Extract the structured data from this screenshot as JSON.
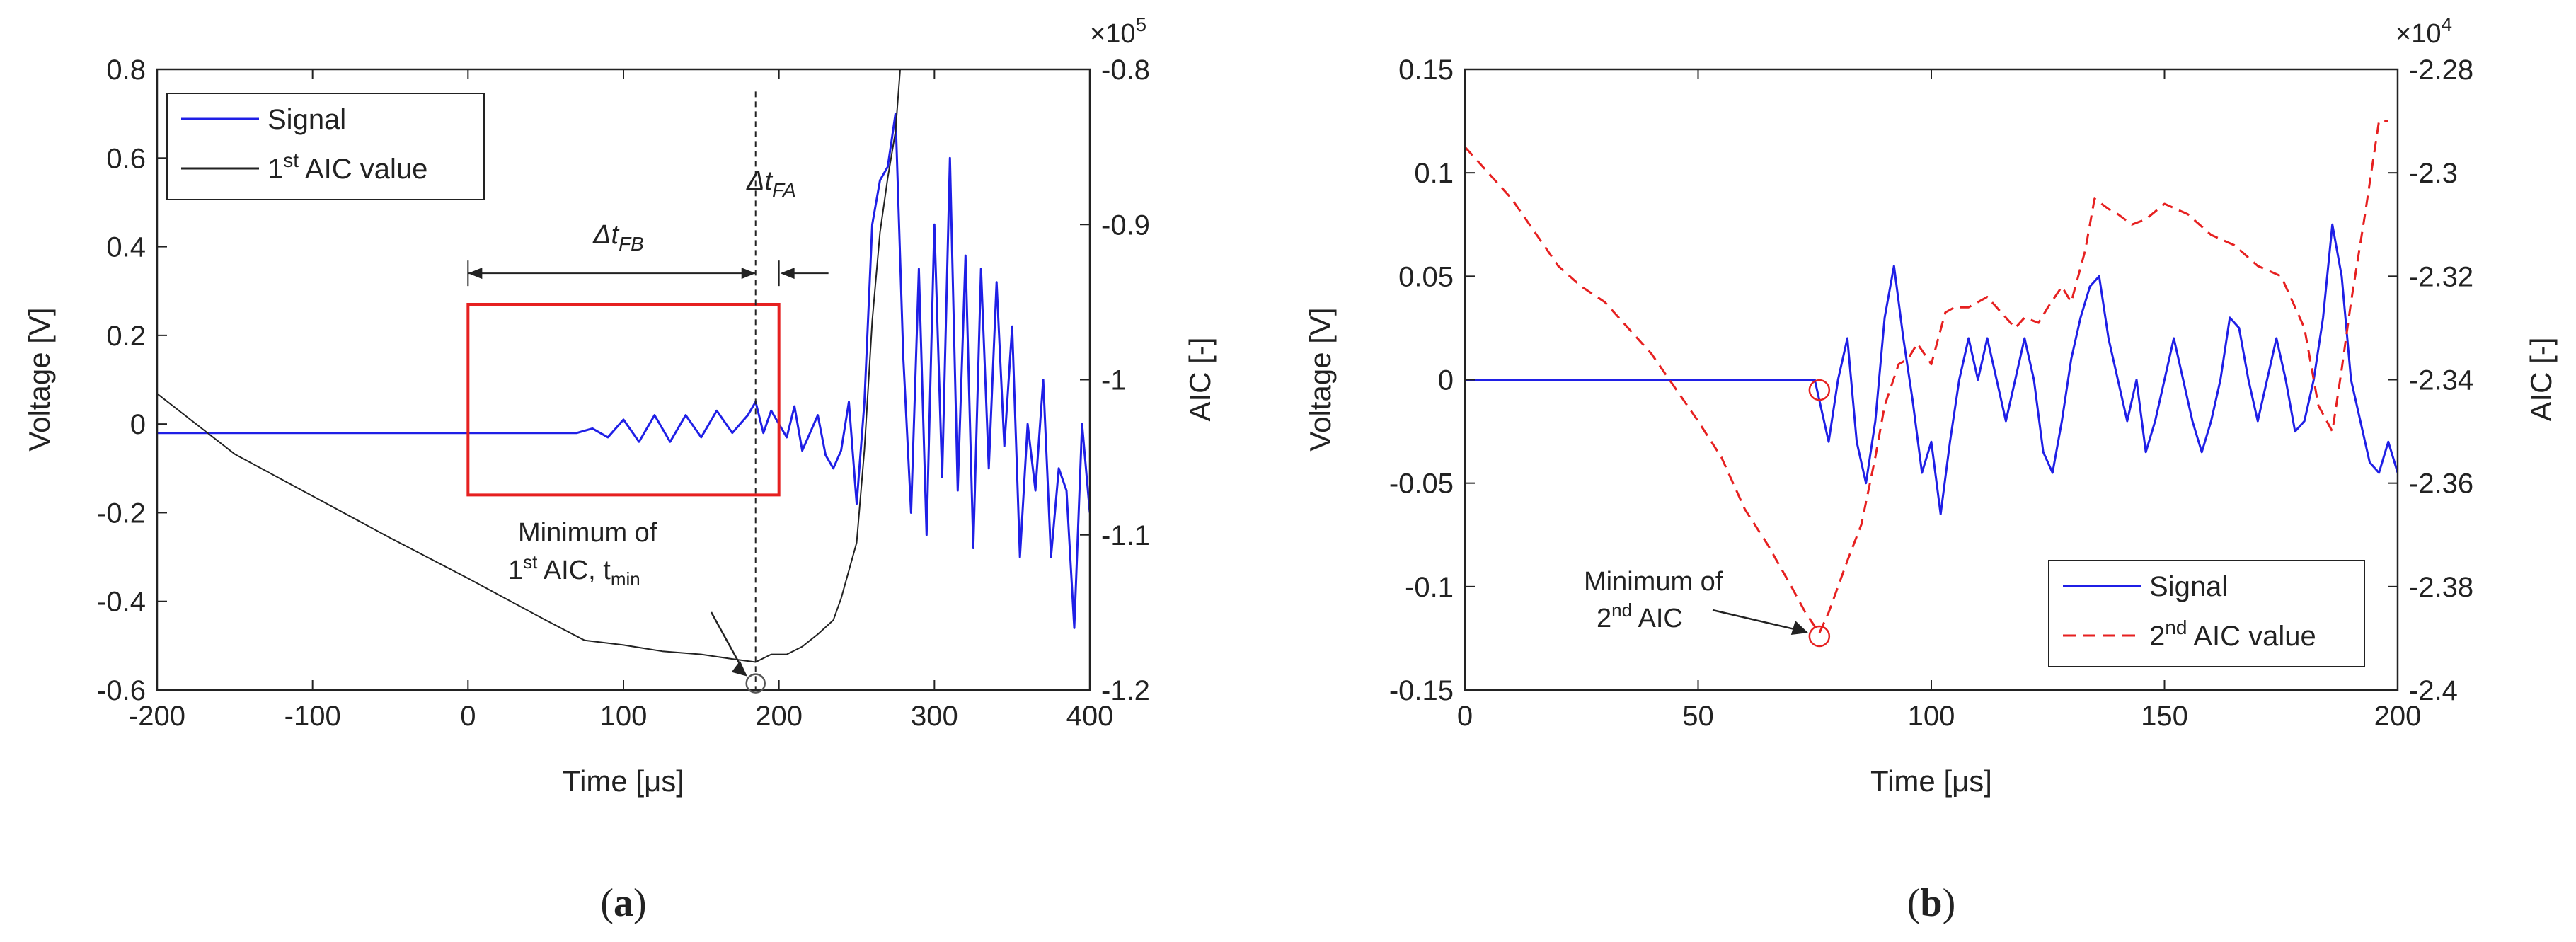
{
  "figure": {
    "caption_a": "(a)",
    "caption_b": "(b)",
    "caption_a_letter": "a",
    "caption_b_letter": "b"
  },
  "chart_data": [
    {
      "id": "a",
      "type": "line",
      "x_label": "Time [μs]",
      "y_label_left": "Voltage [V]",
      "y_label_right": "AIC [-]",
      "right_axis_multiplier": "×10",
      "right_axis_exponent": "5",
      "xlim": [
        -200,
        400
      ],
      "ylim_left": [
        -0.6,
        0.8
      ],
      "ylim_right": [
        -1.2,
        -0.8
      ],
      "x_ticks": [
        -200,
        -100,
        0,
        100,
        200,
        300,
        400
      ],
      "x_tick_labels": [
        "-200",
        "-100",
        "0",
        "100",
        "200",
        "300",
        "400"
      ],
      "y_ticks_left": [
        -0.6,
        -0.4,
        -0.2,
        0,
        0.2,
        0.4,
        0.6,
        0.8
      ],
      "y_tick_labels_left": [
        "-0.6",
        "-0.4",
        "-0.2",
        "0",
        "0.2",
        "0.4",
        "0.6",
        "0.8"
      ],
      "y_ticks_right": [
        -1.2,
        -1.1,
        -1.0,
        -0.9,
        -0.8
      ],
      "y_tick_labels_right": [
        "-1.2",
        "-1.1",
        "-1",
        "-0.9",
        "-0.8"
      ],
      "legend": {
        "position": "top-left",
        "entries": [
          {
            "label": "Signal",
            "color": "#1f1fe6",
            "style": "solid"
          },
          {
            "label": "1st AIC value",
            "base": "1",
            "sup": "st",
            "rest": " AIC value",
            "color": "#222222",
            "style": "solid"
          }
        ]
      },
      "series": [
        {
          "name": "Signal",
          "color": "#1f1fe6",
          "axis": "left",
          "x": [
            -200,
            -150,
            -100,
            -50,
            0,
            50,
            70,
            80,
            90,
            100,
            110,
            120,
            130,
            140,
            150,
            160,
            170,
            180,
            185,
            190,
            195,
            200,
            205,
            210,
            215,
            220,
            225,
            230,
            235,
            240,
            245,
            250,
            255,
            260,
            265,
            270,
            275,
            280,
            285,
            290,
            295,
            300,
            305,
            310,
            315,
            320,
            325,
            330,
            335,
            340,
            345,
            350,
            355,
            360,
            365,
            370,
            375,
            380,
            385,
            390,
            395,
            400
          ],
          "y": [
            -0.02,
            -0.02,
            -0.02,
            -0.02,
            -0.02,
            -0.02,
            -0.02,
            -0.01,
            -0.03,
            0.01,
            -0.04,
            0.02,
            -0.04,
            0.02,
            -0.03,
            0.03,
            -0.02,
            0.02,
            0.05,
            -0.02,
            0.03,
            0.0,
            -0.03,
            0.04,
            -0.06,
            -0.02,
            0.02,
            -0.07,
            -0.1,
            -0.06,
            0.05,
            -0.18,
            0.05,
            0.45,
            0.55,
            0.58,
            0.7,
            0.15,
            -0.2,
            0.35,
            -0.25,
            0.45,
            -0.12,
            0.6,
            -0.15,
            0.38,
            -0.28,
            0.35,
            -0.1,
            0.32,
            -0.05,
            0.22,
            -0.3,
            0.0,
            -0.15,
            0.1,
            -0.3,
            -0.1,
            -0.15,
            -0.46,
            0.0,
            -0.2
          ]
        },
        {
          "name": "1st AIC value",
          "color": "#222222",
          "axis": "right",
          "x": [
            -200,
            -150,
            -100,
            -50,
            0,
            50,
            75,
            100,
            125,
            150,
            170,
            185,
            195,
            205,
            215,
            225,
            235,
            240,
            250,
            255,
            260,
            265,
            270,
            275,
            278
          ],
          "y": [
            -1.009,
            -1.048,
            -1.075,
            -1.102,
            -1.128,
            -1.155,
            -1.168,
            -1.171,
            -1.175,
            -1.177,
            -1.18,
            -1.182,
            -1.177,
            -1.177,
            -1.172,
            -1.164,
            -1.155,
            -1.141,
            -1.105,
            -1.045,
            -0.962,
            -0.905,
            -0.87,
            -0.84,
            -0.8
          ]
        }
      ],
      "annotations": {
        "box": {
          "x_range": [
            0,
            200
          ],
          "y_range": [
            -0.16,
            0.27
          ],
          "color": "#e62020"
        },
        "dt_fb": {
          "base": "Δt",
          "sub": "FB",
          "x_range": [
            0,
            185
          ],
          "y": 0.34
        },
        "dt_fa": {
          "base": "Δt",
          "sub": "FA",
          "x_range": [
            185,
            200
          ],
          "y": 0.34
        },
        "dashed_line_x": 185,
        "min_circle": {
          "x": 185,
          "y": -0.585
        },
        "min_text_line1": "Minimum of",
        "min_text_line2_base": "1",
        "min_text_line2_sup": "st",
        "min_text_line2_mid": " AIC, t",
        "min_text_line2_sub": "min"
      }
    },
    {
      "id": "b",
      "type": "line",
      "x_label": "Time [μs]",
      "y_label_left": "Voltage [V]",
      "y_label_right": "AIC [-]",
      "right_axis_multiplier": "×10",
      "right_axis_exponent": "4",
      "xlim": [
        0,
        200
      ],
      "ylim_left": [
        -0.15,
        0.15
      ],
      "ylim_right": [
        -2.4,
        -2.28
      ],
      "x_ticks": [
        0,
        50,
        100,
        150,
        200
      ],
      "x_tick_labels": [
        "0",
        "50",
        "100",
        "150",
        "200"
      ],
      "y_ticks_left": [
        -0.15,
        -0.1,
        -0.05,
        0,
        0.05,
        0.1,
        0.15
      ],
      "y_tick_labels_left": [
        "-0.15",
        "-0.1",
        "-0.05",
        "0",
        "0.05",
        "0.1",
        "0.15"
      ],
      "y_ticks_right": [
        -2.4,
        -2.38,
        -2.36,
        -2.34,
        -2.32,
        -2.3,
        -2.28
      ],
      "y_tick_labels_right": [
        "-2.4",
        "-2.38",
        "-2.36",
        "-2.34",
        "-2.32",
        "-2.3",
        "-2.28"
      ],
      "legend": {
        "position": "bottom-right",
        "entries": [
          {
            "label": "Signal",
            "color": "#1f1fe6",
            "style": "solid"
          },
          {
            "label": "2nd AIC value",
            "base": "2",
            "sup": "nd",
            "rest": " AIC value",
            "color": "#e62020",
            "style": "dashed"
          }
        ]
      },
      "series": [
        {
          "name": "Signal",
          "color": "#1f1fe6",
          "axis": "left",
          "x": [
            0,
            10,
            20,
            30,
            40,
            50,
            60,
            70,
            75,
            78,
            80,
            82,
            84,
            86,
            88,
            90,
            92,
            94,
            96,
            98,
            100,
            102,
            104,
            106,
            108,
            110,
            112,
            114,
            116,
            118,
            120,
            122,
            124,
            126,
            128,
            130,
            132,
            134,
            136,
            138,
            140,
            142,
            144,
            146,
            148,
            150,
            152,
            154,
            156,
            158,
            160,
            162,
            164,
            166,
            168,
            170,
            172,
            174,
            176,
            178,
            180,
            182,
            184,
            186,
            188,
            190,
            192,
            194,
            196,
            198,
            200
          ],
          "y": [
            0.0,
            0.0,
            0.0,
            0.0,
            0.0,
            0.0,
            0.0,
            0.0,
            0.0,
            -0.03,
            0.0,
            0.02,
            -0.03,
            -0.05,
            -0.02,
            0.03,
            0.055,
            0.02,
            -0.01,
            -0.045,
            -0.03,
            -0.065,
            -0.03,
            0.0,
            0.02,
            0.0,
            0.02,
            0.0,
            -0.02,
            0.0,
            0.02,
            0.0,
            -0.035,
            -0.045,
            -0.02,
            0.01,
            0.03,
            0.045,
            0.05,
            0.02,
            0.0,
            -0.02,
            0.0,
            -0.035,
            -0.02,
            0.0,
            0.02,
            0.0,
            -0.02,
            -0.035,
            -0.02,
            0.0,
            0.03,
            0.025,
            0.0,
            -0.02,
            0.0,
            0.02,
            0.0,
            -0.025,
            -0.02,
            0.0,
            0.03,
            0.075,
            0.05,
            0.0,
            -0.02,
            -0.04,
            -0.045,
            -0.03,
            -0.045
          ]
        },
        {
          "name": "2nd AIC value",
          "color": "#e62020",
          "axis": "right",
          "x": [
            0,
            10,
            20,
            25,
            30,
            40,
            50,
            55,
            60,
            65,
            70,
            73,
            76,
            78,
            80,
            82,
            85,
            88,
            90,
            93,
            95,
            97,
            100,
            103,
            105,
            108,
            112,
            115,
            118,
            120,
            123,
            125,
            128,
            130,
            133,
            135,
            138,
            140,
            143,
            146,
            150,
            155,
            160,
            165,
            170,
            175,
            180,
            183,
            186,
            188,
            190,
            193,
            196,
            198
          ],
          "y": [
            -2.295,
            -2.305,
            -2.318,
            -2.322,
            -2.325,
            -2.335,
            -2.348,
            -2.355,
            -2.365,
            -2.372,
            -2.38,
            -2.385,
            -2.389,
            -2.385,
            -2.38,
            -2.375,
            -2.368,
            -2.355,
            -2.345,
            -2.337,
            -2.336,
            -2.333,
            -2.337,
            -2.327,
            -2.326,
            -2.326,
            -2.324,
            -2.327,
            -2.33,
            -2.328,
            -2.329,
            -2.326,
            -2.322,
            -2.325,
            -2.315,
            -2.305,
            -2.307,
            -2.308,
            -2.31,
            -2.309,
            -2.306,
            -2.308,
            -2.312,
            -2.314,
            -2.318,
            -2.32,
            -2.33,
            -2.345,
            -2.35,
            -2.338,
            -2.325,
            -2.308,
            -2.29,
            -2.29
          ]
        }
      ],
      "annotations": {
        "min_circle_small": {
          "x": 76,
          "y": -0.005
        },
        "min_circle_big": {
          "x": 76,
          "y": -0.124
        },
        "min_text_line1": "Minimum of",
        "min_text_line2_base": "2",
        "min_text_line2_sup": "nd",
        "min_text_line2_rest": " AIC"
      }
    }
  ]
}
